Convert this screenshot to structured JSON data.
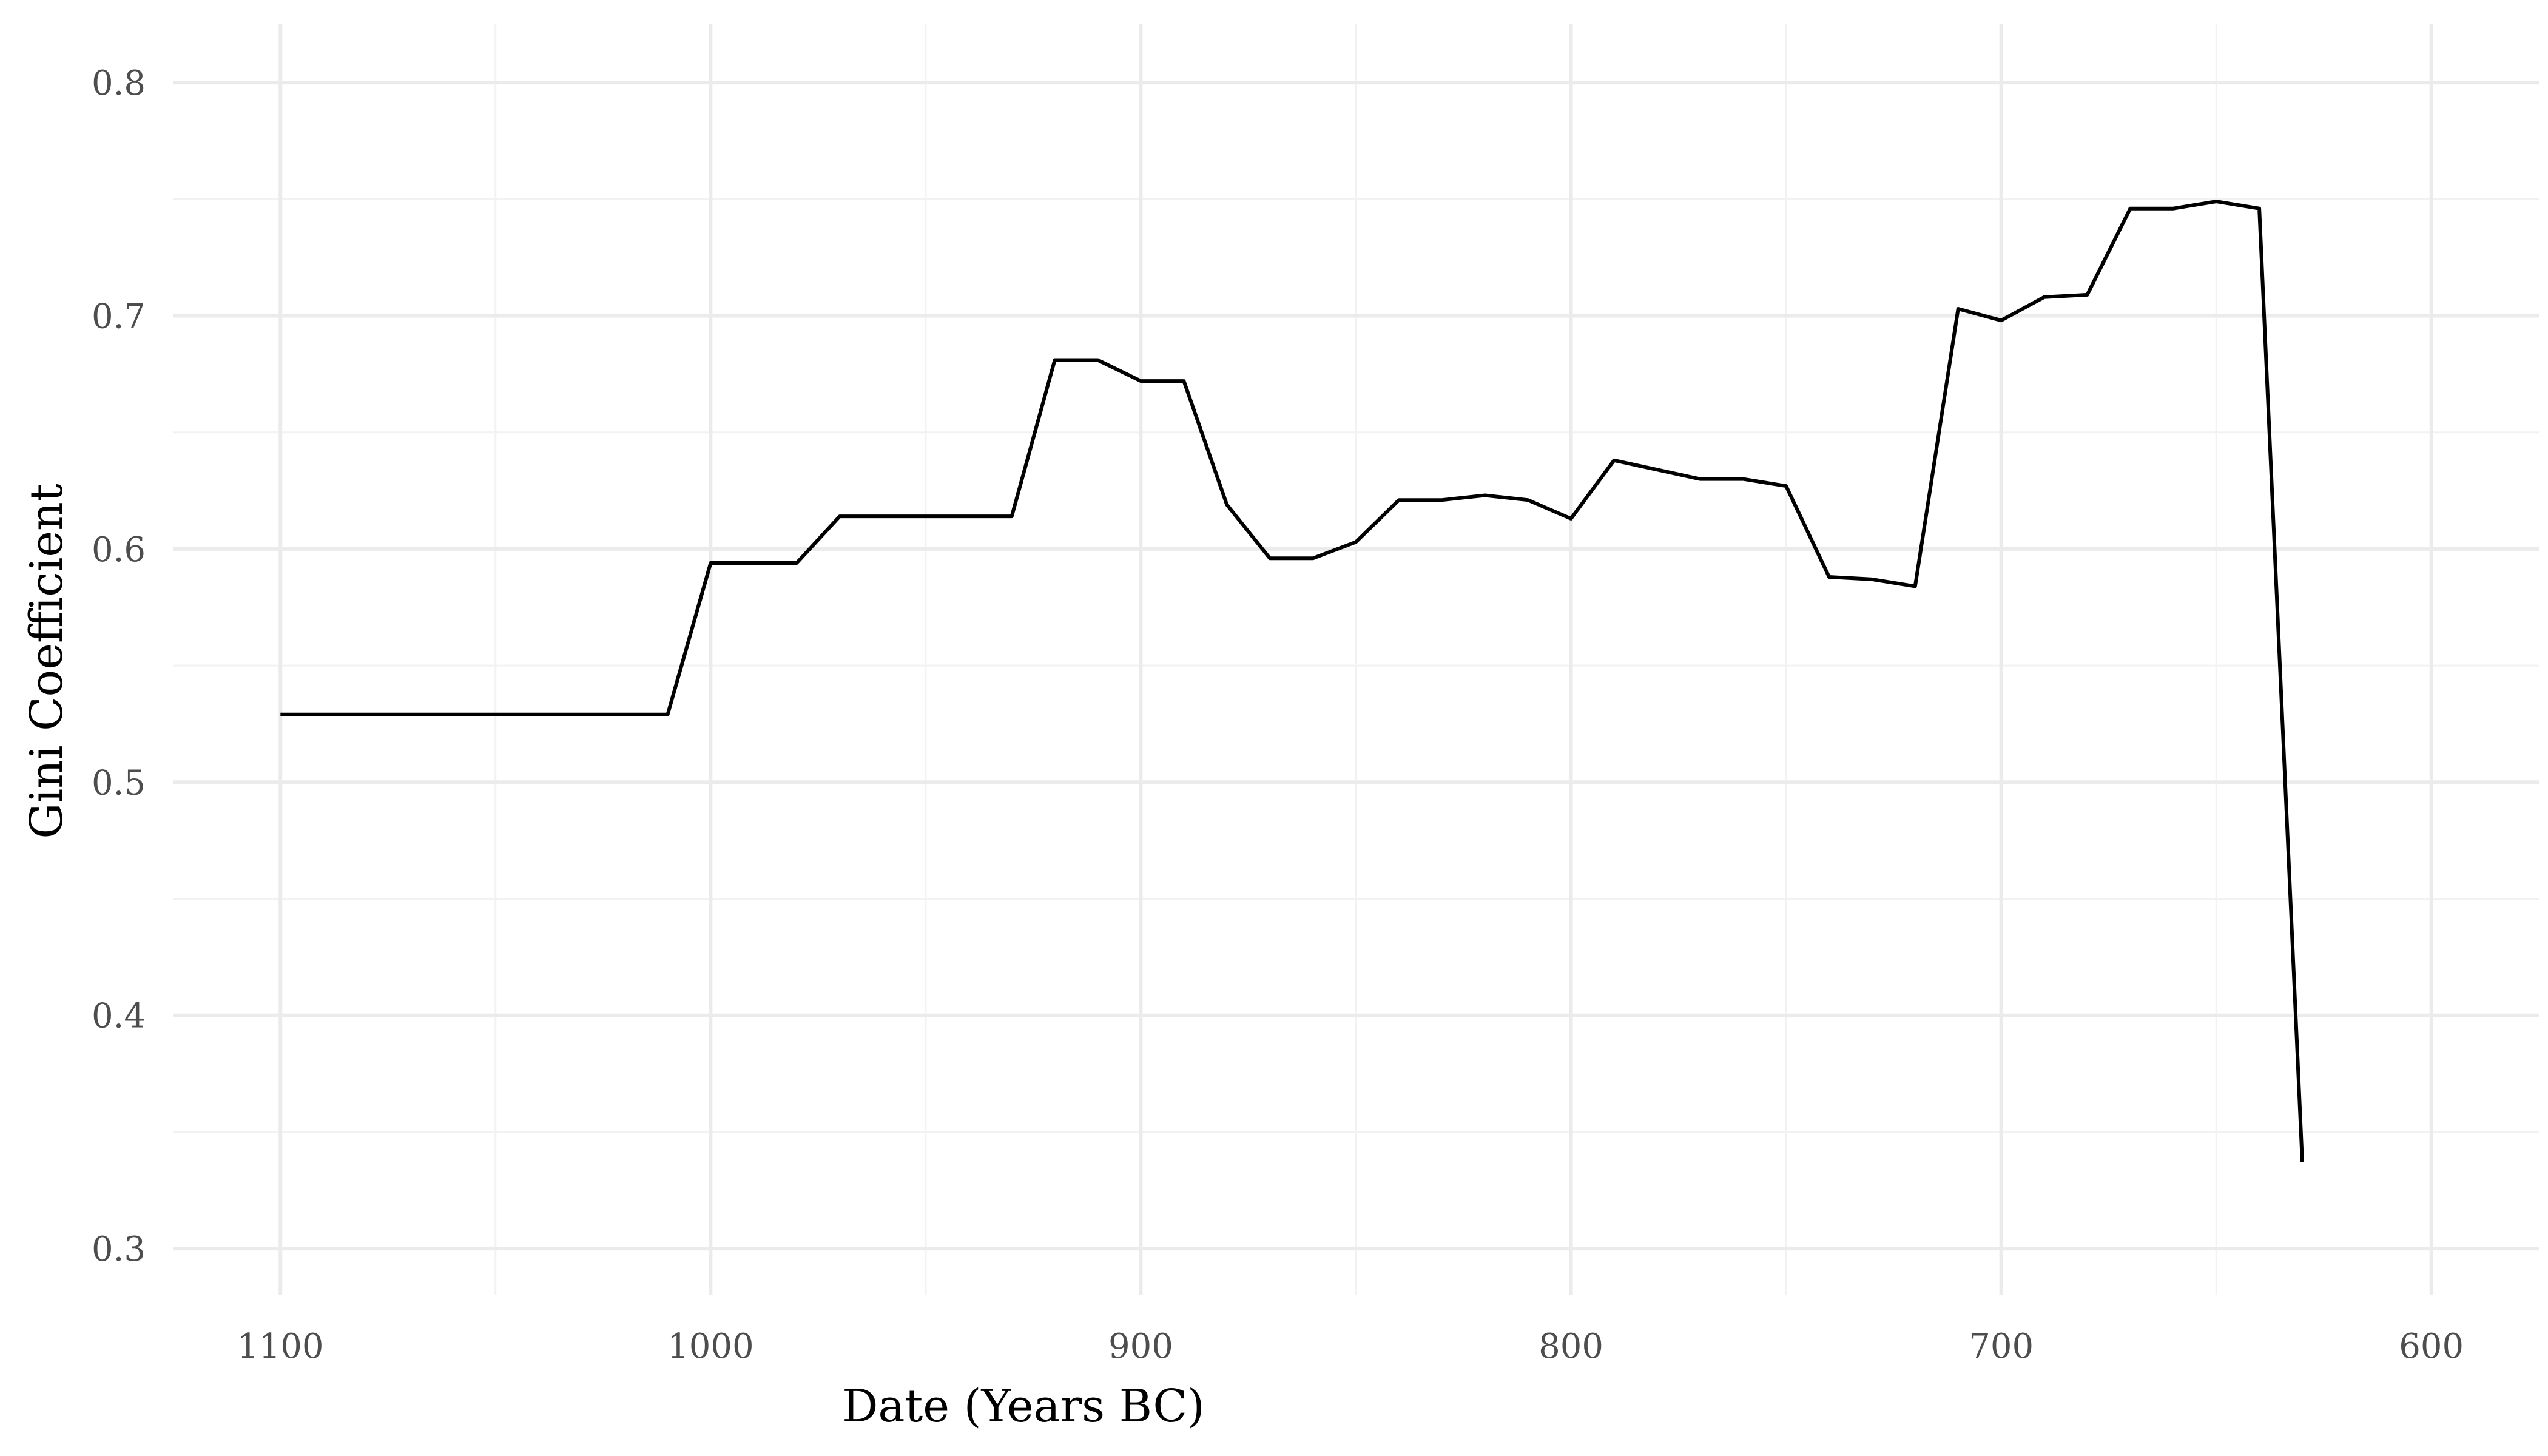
{
  "chart_data": {
    "type": "line",
    "title": "",
    "xlabel": "Date (Years BC)",
    "ylabel": "Gini Coefficient",
    "x_reversed": true,
    "xlim": [
      1125,
      575
    ],
    "ylim": [
      0.28,
      0.825
    ],
    "x_ticks": [
      1100,
      1000,
      900,
      800,
      700,
      600
    ],
    "x_tick_labels": [
      "1100",
      "1000",
      "900",
      "800",
      "700",
      "600"
    ],
    "x_minor_ticks": [
      1050,
      950,
      850,
      750,
      650
    ],
    "y_ticks": [
      0.3,
      0.4,
      0.5,
      0.6,
      0.7,
      0.8
    ],
    "y_tick_labels": [
      "0.3",
      "0.4",
      "0.5",
      "0.6",
      "0.7",
      "0.8"
    ],
    "y_minor_ticks": [
      0.35,
      0.45,
      0.55,
      0.65,
      0.75
    ],
    "grid": true,
    "legend": "none",
    "series": [
      {
        "color": "#000000",
        "x": [
          1100,
          1010,
          1000,
          980,
          970,
          960,
          950,
          940,
          930,
          920,
          910,
          900,
          890,
          880,
          870,
          860,
          850,
          840,
          830,
          820,
          810,
          800,
          790,
          780,
          770,
          760,
          750,
          740,
          730,
          720,
          710,
          700,
          690,
          680,
          670,
          660,
          650,
          640,
          630
        ],
        "values": [
          0.529,
          0.529,
          0.594,
          0.594,
          0.614,
          0.614,
          0.614,
          0.614,
          0.614,
          0.681,
          0.681,
          0.672,
          0.672,
          0.619,
          0.596,
          0.596,
          0.603,
          0.621,
          0.621,
          0.623,
          0.621,
          0.613,
          0.638,
          0.634,
          0.63,
          0.63,
          0.627,
          0.588,
          0.587,
          0.584,
          0.703,
          0.698,
          0.708,
          0.709,
          0.746,
          0.746,
          0.749,
          0.746,
          0.337
        ]
      }
    ]
  }
}
